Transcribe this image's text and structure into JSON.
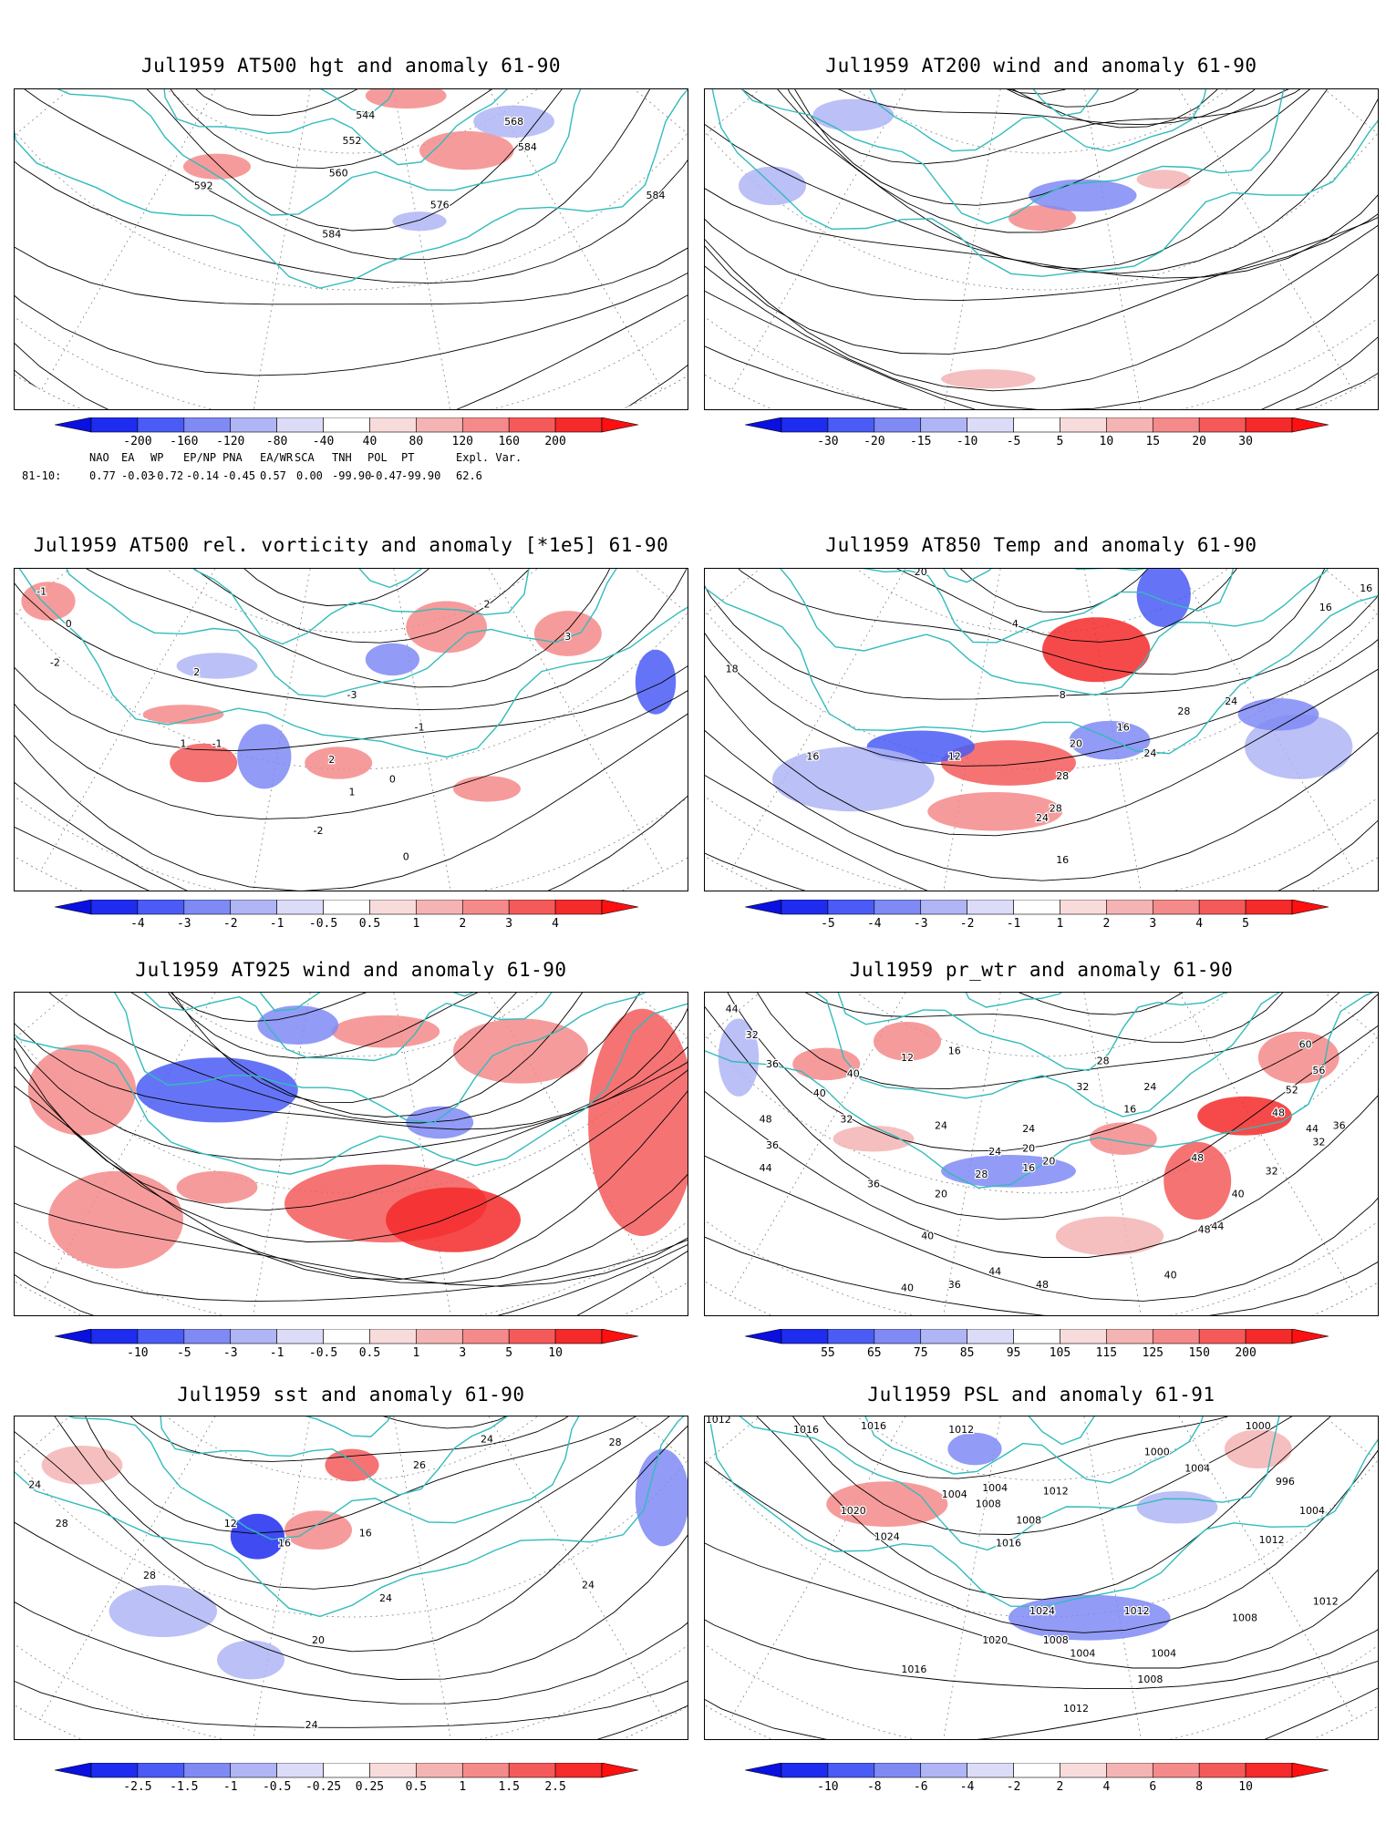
{
  "panels": [
    {
      "title": "Jul1959 AT500 hgt and anomaly 61-90",
      "labels": [
        "544",
        "552",
        "560",
        "568",
        "576",
        "584",
        "584",
        "584",
        "592"
      ],
      "colorbar": [
        "-200",
        "-160",
        "-120",
        "-80",
        "-40",
        "40",
        "80",
        "120",
        "160",
        "200"
      ]
    },
    {
      "title": "Jul1959 AT200 wind and anomaly 61-90",
      "labels": [],
      "colorbar": [
        "-30",
        "-20",
        "-15",
        "-10",
        "-5",
        "5",
        "10",
        "15",
        "20",
        "30"
      ]
    },
    {
      "title": "Jul1959 AT500 rel. vorticity and anomaly [*1e5] 61-90",
      "labels": [
        "-1",
        "-2",
        "0",
        "1",
        "2",
        "3",
        "-3",
        "-1",
        "0",
        "2",
        "-1",
        "1",
        "0",
        "-2",
        "2"
      ],
      "colorbar": [
        "-4",
        "-3",
        "-2",
        "-1",
        "-0.5",
        "0.5",
        "1",
        "2",
        "3",
        "4"
      ]
    },
    {
      "title": "Jul1959 AT850 Temp and anomaly 61-90",
      "labels": [
        "20",
        "16",
        "4",
        "8",
        "18",
        "16",
        "12",
        "20",
        "28",
        "24",
        "28",
        "24",
        "16",
        "16",
        "28",
        "24",
        "16"
      ],
      "colorbar": [
        "-5",
        "-4",
        "-3",
        "-2",
        "-1",
        "1",
        "2",
        "3",
        "4",
        "5"
      ]
    },
    {
      "title": "Jul1959 AT925 wind and anomaly 61-90",
      "labels": [],
      "colorbar": [
        "-10",
        "-5",
        "-3",
        "-1",
        "-0.5",
        "0.5",
        "1",
        "3",
        "5",
        "10"
      ]
    },
    {
      "title": "Jul1959 pr_wtr and anomaly 61-90",
      "labels": [
        "44",
        "32",
        "36",
        "40",
        "48",
        "36",
        "44",
        "40",
        "36",
        "32",
        "28",
        "24",
        "20",
        "16",
        "12",
        "20",
        "24",
        "16",
        "24",
        "20",
        "28",
        "32",
        "24",
        "16",
        "60",
        "56",
        "52",
        "48",
        "44",
        "40",
        "48",
        "32",
        "48",
        "40",
        "44",
        "40",
        "48",
        "36",
        "40",
        "44",
        "32",
        "36"
      ],
      "colorbar": [
        "55",
        "65",
        "75",
        "85",
        "95",
        "105",
        "115",
        "125",
        "150",
        "200"
      ]
    },
    {
      "title": "Jul1959 sst and anomaly 61-90",
      "labels": [
        "24",
        "28",
        "28",
        "24",
        "20",
        "16",
        "12",
        "16",
        "24",
        "28",
        "24",
        "24",
        "26"
      ],
      "colorbar": [
        "-2.5",
        "-1.5",
        "-1",
        "-0.5",
        "-0.25",
        "0.25",
        "0.5",
        "1",
        "1.5",
        "2.5"
      ]
    },
    {
      "title": "Jul1959 PSL and anomaly 61-91",
      "labels": [
        "1012",
        "1016",
        "1016",
        "1012",
        "1004",
        "1008",
        "1004",
        "1012",
        "1008",
        "1020",
        "1024",
        "1016",
        "1024",
        "1020",
        "1016",
        "1012",
        "1008",
        "1000",
        "1004",
        "996",
        "1000",
        "1004",
        "1012",
        "1008",
        "1004",
        "1004",
        "1008",
        "1012",
        "1012"
      ],
      "colorbar": [
        "-10",
        "-8",
        "-6",
        "-4",
        "-2",
        "2",
        "4",
        "6",
        "8",
        "10"
      ]
    }
  ],
  "teleconnections": {
    "headers": [
      "NAO",
      "EA",
      "WP",
      "EP/NP",
      "PNA",
      "EA/WR",
      "SCA",
      "TNH",
      "POL",
      "PT",
      "Expl. Var."
    ],
    "row_label": "81-10:",
    "values": [
      "0.77",
      "-0.03",
      "-0.72",
      "-0.14",
      "-0.45",
      "0.57",
      "0.00",
      "-99.90",
      "-0.47",
      "-99.90",
      "62.6"
    ]
  },
  "palette": {
    "blue_shades": [
      "#1e2cf0",
      "#4a5cf5",
      "#7f8af5",
      "#afb5f5",
      "#dcdcf8"
    ],
    "red_shades": [
      "#f8dcdc",
      "#f5b4b4",
      "#f58a8a",
      "#f55a5a",
      "#f52a2a"
    ],
    "coast_color": "#33bbbb"
  },
  "chart_data": [
    {
      "type": "heatmap",
      "title": "Jul1959 AT500 hgt and anomaly 61-90",
      "contour_labels": [
        544,
        552,
        560,
        568,
        576,
        584,
        592
      ],
      "colorbar_levels": [
        -200,
        -160,
        -120,
        -80,
        -40,
        40,
        80,
        120,
        160,
        200
      ]
    },
    {
      "type": "heatmap",
      "title": "Jul1959 AT200 wind and anomaly 61-90",
      "colorbar_levels": [
        -30,
        -20,
        -15,
        -10,
        -5,
        5,
        10,
        15,
        20,
        30
      ]
    },
    {
      "type": "heatmap",
      "title": "Jul1959 AT500 rel. vorticity and anomaly [*1e5] 61-90",
      "contour_labels": [
        -3,
        -2,
        -1,
        0,
        1,
        2,
        3
      ],
      "colorbar_levels": [
        -4,
        -3,
        -2,
        -1,
        -0.5,
        0.5,
        1,
        2,
        3,
        4
      ]
    },
    {
      "type": "heatmap",
      "title": "Jul1959 AT850 Temp and anomaly 61-90",
      "contour_labels": [
        4,
        8,
        12,
        16,
        18,
        20,
        24,
        28
      ],
      "colorbar_levels": [
        -5,
        -4,
        -3,
        -2,
        -1,
        1,
        2,
        3,
        4,
        5
      ]
    },
    {
      "type": "heatmap",
      "title": "Jul1959 AT925 wind and anomaly 61-90",
      "colorbar_levels": [
        -10,
        -5,
        -3,
        -1,
        -0.5,
        0.5,
        1,
        3,
        5,
        10
      ]
    },
    {
      "type": "heatmap",
      "title": "Jul1959 pr_wtr and anomaly 61-90",
      "contour_labels": [
        12,
        16,
        20,
        24,
        28,
        32,
        36,
        40,
        44,
        48,
        52,
        56,
        60
      ],
      "colorbar_levels": [
        55,
        65,
        75,
        85,
        95,
        105,
        115,
        125,
        150,
        200
      ]
    },
    {
      "type": "heatmap",
      "title": "Jul1959 sst and anomaly 61-90",
      "contour_labels": [
        12,
        16,
        20,
        24,
        26,
        28
      ],
      "colorbar_levels": [
        -2.5,
        -1.5,
        -1,
        -0.5,
        -0.25,
        0.25,
        0.5,
        1,
        1.5,
        2.5
      ]
    },
    {
      "type": "heatmap",
      "title": "Jul1959 PSL and anomaly 61-91",
      "contour_labels": [
        996,
        1000,
        1004,
        1008,
        1012,
        1016,
        1020,
        1024
      ],
      "colorbar_levels": [
        -10,
        -8,
        -6,
        -4,
        -2,
        2,
        4,
        6,
        8,
        10
      ]
    }
  ]
}
